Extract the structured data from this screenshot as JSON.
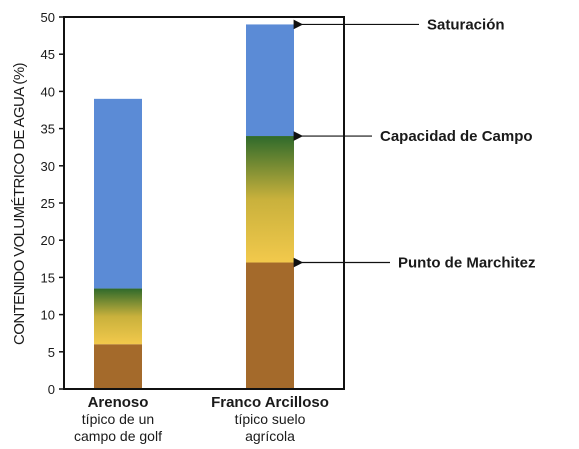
{
  "chart_data": {
    "type": "bar",
    "ylabel": "CONTENIDO VOLUMÉTRICO DE AGUA (%)",
    "ylim": [
      0,
      50
    ],
    "yticks": [
      0,
      5,
      10,
      15,
      20,
      25,
      30,
      35,
      40,
      45,
      50
    ],
    "grid": false,
    "categories": [
      {
        "name": "Arenoso",
        "subtitle_lines": [
          "típico de un",
          "campo de golf"
        ]
      },
      {
        "name": "Franco Arcilloso",
        "subtitle_lines": [
          "típico suelo",
          "agrícola"
        ]
      }
    ],
    "series": [
      {
        "name": "Punto de Marchitez",
        "values": [
          6,
          17
        ]
      },
      {
        "name": "Capacidad de Campo",
        "values": [
          13.5,
          34
        ]
      },
      {
        "name": "Saturación",
        "values": [
          39,
          49
        ]
      }
    ],
    "annotations": [
      {
        "text": "Saturación",
        "category_index": 1,
        "y": 49
      },
      {
        "text": "Capacidad de Campo",
        "category_index": 1,
        "y": 34
      },
      {
        "text": "Punto de Marchitez",
        "category_index": 1,
        "y": 17
      }
    ],
    "colors": {
      "wilting_zone": "#a46a2b",
      "available_water_bottom": "#f2c94c",
      "available_water_mid": "#c9b13c",
      "available_water_top": "#2f6a2b",
      "gravitational_water": "#5b8bd6",
      "axis": "#111111"
    }
  }
}
